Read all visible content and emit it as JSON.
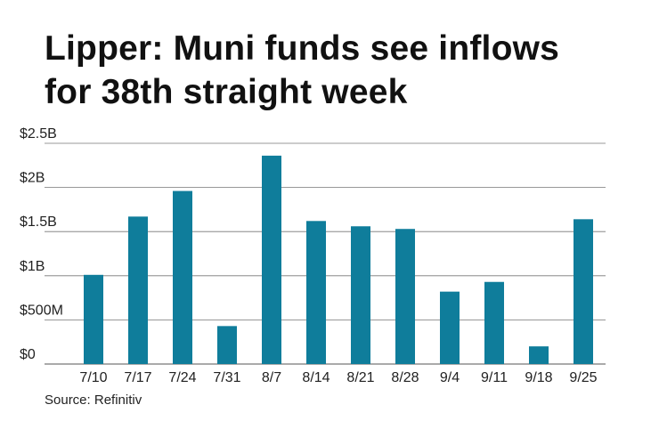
{
  "title_lines": [
    "Lipper: Muni funds see inflows",
    "for 38th straight week"
  ],
  "source": "Source: Refinitiv",
  "colors": {
    "bar": "#0f7d9b",
    "grid": "#777777",
    "text": "#222222"
  },
  "chart_data": {
    "type": "bar",
    "title": "Lipper: Muni funds see inflows for 38th straight week",
    "xlabel": "",
    "ylabel": "",
    "categories": [
      "7/10",
      "7/17",
      "7/24",
      "7/31",
      "8/7",
      "8/14",
      "8/21",
      "8/28",
      "9/4",
      "9/11",
      "9/18",
      "9/25"
    ],
    "values": [
      1.01,
      1.67,
      1.96,
      0.43,
      2.36,
      1.62,
      1.56,
      1.53,
      0.82,
      0.93,
      0.2,
      1.64
    ],
    "unit": "billions USD",
    "ylim": [
      0,
      2.5
    ],
    "yticks": [
      {
        "value": 0,
        "label": "$0"
      },
      {
        "value": 0.5,
        "label": "$500M"
      },
      {
        "value": 1,
        "label": "$1B"
      },
      {
        "value": 1.5,
        "label": "$1.5B"
      },
      {
        "value": 2,
        "label": "$2B"
      },
      {
        "value": 2.5,
        "label": "$2.5B"
      }
    ],
    "grid": true
  }
}
